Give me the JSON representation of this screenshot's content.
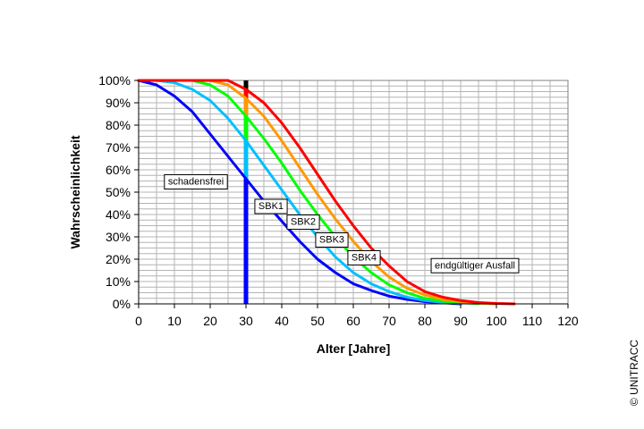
{
  "chart_data": {
    "type": "line",
    "xlabel": "Alter [Jahre]",
    "ylabel": "Wahrscheinlichkeit",
    "xlim": [
      0,
      120
    ],
    "ylim": [
      0,
      100
    ],
    "x_ticks": [
      "0",
      "10",
      "20",
      "30",
      "40",
      "50",
      "60",
      "70",
      "80",
      "90",
      "100",
      "110",
      "120"
    ],
    "y_ticks": [
      "0%",
      "10%",
      "20%",
      "30%",
      "40%",
      "50%",
      "60%",
      "70%",
      "80%",
      "90%",
      "100%"
    ],
    "grid": true,
    "series": [
      {
        "name": "schadensfrei",
        "color": "#0000ff",
        "x": [
          0,
          5,
          10,
          15,
          20,
          25,
          30,
          35,
          40,
          45,
          50,
          55,
          60,
          65,
          70,
          75,
          80,
          85,
          90
        ],
        "y": [
          100,
          98,
          93,
          86,
          76,
          66,
          56,
          46,
          37,
          28,
          20,
          14,
          9,
          6,
          3.5,
          2,
          1,
          0.5,
          0
        ]
      },
      {
        "name": "SBK1",
        "color": "#00c0ff",
        "x": [
          0,
          5,
          10,
          15,
          20,
          25,
          30,
          35,
          40,
          45,
          50,
          55,
          60,
          65,
          70,
          75,
          80,
          85,
          90
        ],
        "y": [
          100,
          100,
          99,
          96,
          91,
          83,
          73,
          62,
          51,
          40,
          30,
          21,
          14,
          9,
          5.5,
          3,
          1.5,
          0.7,
          0.2
        ]
      },
      {
        "name": "SBK2",
        "color": "#00ff00",
        "x": [
          0,
          5,
          10,
          15,
          20,
          25,
          30,
          35,
          40,
          45,
          50,
          55,
          60,
          65,
          70,
          75,
          80,
          85,
          90,
          95
        ],
        "y": [
          100,
          100,
          100,
          100,
          98,
          93,
          84,
          74,
          63,
          51,
          40,
          30,
          21,
          14,
          8.5,
          5,
          2.5,
          1.2,
          0.5,
          0.1
        ]
      },
      {
        "name": "SBK3",
        "color": "#ff9900",
        "x": [
          0,
          5,
          10,
          15,
          20,
          25,
          30,
          35,
          40,
          45,
          50,
          55,
          60,
          65,
          70,
          75,
          80,
          85,
          90,
          95,
          100
        ],
        "y": [
          100,
          100,
          100,
          100,
          100,
          98,
          92,
          84,
          73,
          61,
          49,
          38,
          28,
          19,
          12,
          7,
          4,
          2,
          1,
          0.3,
          0
        ]
      },
      {
        "name": "SBK4",
        "color": "#ff0000",
        "x": [
          0,
          5,
          10,
          15,
          20,
          25,
          30,
          35,
          40,
          45,
          50,
          55,
          60,
          65,
          70,
          75,
          80,
          85,
          90,
          95,
          100,
          105
        ],
        "y": [
          100,
          100,
          100,
          100,
          100,
          100,
          96,
          90,
          81,
          70,
          58,
          46,
          35,
          25,
          17,
          10,
          5.5,
          3,
          1.5,
          0.6,
          0.2,
          0
        ]
      }
    ],
    "marker_line": {
      "x": 30,
      "segments": [
        {
          "from": 0,
          "to": 56,
          "color": "#0000ff"
        },
        {
          "from": 56,
          "to": 73,
          "color": "#00c0ff"
        },
        {
          "from": 73,
          "to": 84,
          "color": "#00ff00"
        },
        {
          "from": 84,
          "to": 92,
          "color": "#ff9900"
        },
        {
          "from": 92,
          "to": 96,
          "color": "#ff0000"
        },
        {
          "from": 96,
          "to": 100,
          "color": "#000000"
        }
      ]
    },
    "annotations": [
      {
        "text": "schadensfrei",
        "x": 16,
        "y": 55
      },
      {
        "text": "SBK1",
        "x": 37,
        "y": 44
      },
      {
        "text": "SBK2",
        "x": 46,
        "y": 37
      },
      {
        "text": "SBK3",
        "x": 54,
        "y": 29
      },
      {
        "text": "SBK4",
        "x": 63,
        "y": 21
      },
      {
        "text": "endgültiger Ausfall",
        "x": 94,
        "y": 17.5
      }
    ]
  },
  "copyright": "© UNITRACC"
}
